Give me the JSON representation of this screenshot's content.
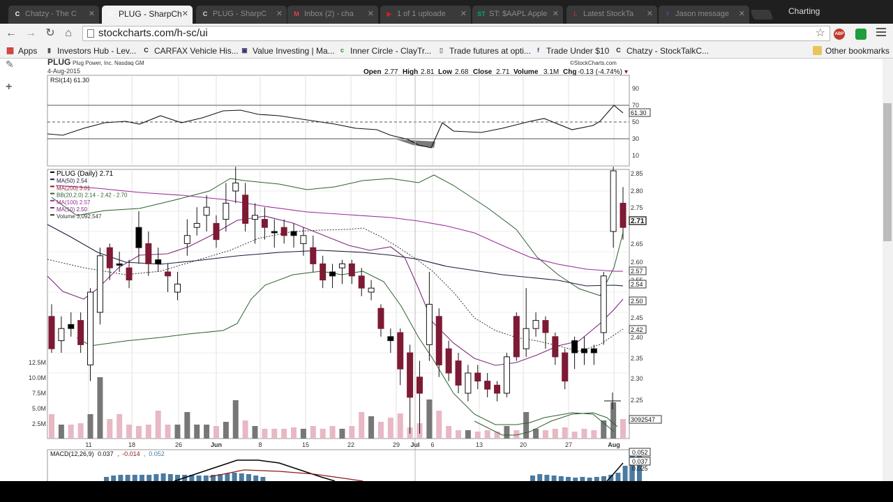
{
  "window": {
    "title": "Charting"
  },
  "tabs": [
    {
      "label": "Chatzy - The C",
      "favicon": "C",
      "active": false
    },
    {
      "label": "PLUG - SharpCh",
      "favicon": "C",
      "active": true
    },
    {
      "label": "PLUG - SharpC",
      "favicon": "C",
      "active": false
    },
    {
      "label": "Inbox (2) - cha",
      "favicon": "M",
      "active": false
    },
    {
      "label": "1 of 1 uploade",
      "favicon": "▶",
      "active": false
    },
    {
      "label": "ST: $AAPL Apple",
      "favicon": "ST",
      "active": false
    },
    {
      "label": "Latest StockTa",
      "favicon": "L",
      "active": false
    },
    {
      "label": "Jason message",
      "favicon": "f",
      "active": false
    }
  ],
  "address_bar": {
    "url": "stockcharts.com/h-sc/ui"
  },
  "extensions": {
    "abp": "ABP"
  },
  "bookmarks": {
    "apps_label": "Apps",
    "items": [
      {
        "label": "Investors Hub - Lev...",
        "icon": "bookmark-icon"
      },
      {
        "label": "CARFAX Vehicle His...",
        "icon": "carfax-icon"
      },
      {
        "label": "Value Investing | Ma...",
        "icon": "page-icon"
      },
      {
        "label": "Inner Circle - ClayTr...",
        "icon": "claytrader-icon"
      },
      {
        "label": "Trade futures at opti...",
        "icon": "doc-icon"
      },
      {
        "label": "Trade Under $10",
        "icon": "facebook-icon"
      },
      {
        "label": "Chatzy - StockTalkC...",
        "icon": "chatzy-icon"
      }
    ],
    "other_label": "Other bookmarks"
  },
  "chart_header": {
    "symbol": "PLUG",
    "company": "Plug Power, Inc. Nasdaq GM",
    "date": "4-Aug-2015",
    "source": "©StockCharts.com",
    "open_label": "Open",
    "open": "2.77",
    "high_label": "High",
    "high": "2.81",
    "low_label": "Low",
    "low": "2.68",
    "close_label": "Close",
    "close": "2.71",
    "volume_label": "Volume",
    "volume": "3.1M",
    "chg_label": "Chg",
    "chg": "-0.13 (-4.74%)"
  },
  "rsi_panel": {
    "label": "RSI(14) 61.30",
    "current_badge": "61.30",
    "ticks": [
      "90",
      "70",
      "50",
      "30",
      "10"
    ]
  },
  "price_panel": {
    "legend": [
      {
        "text": "PLUG (Daily) 2.71",
        "color": "#000000"
      },
      {
        "text": "MA(50) 2.54",
        "color": "#1a1a3a"
      },
      {
        "text": "MA(200) 3.01",
        "color": "#8b1a1a"
      },
      {
        "text": "BB(20,2.0) 2.14 - 2.42 - 2.70",
        "color": "#2e5e2e"
      },
      {
        "text": "MA(100) 2.57",
        "color": "#9a2a9a"
      },
      {
        "text": "MA(10) 2.50",
        "color": "#7a2a7a"
      },
      {
        "text": "Volume 3,092,547",
        "color": "#333333"
      }
    ],
    "price_ticks": [
      "2.85",
      "2.80",
      "2.75",
      "2.71",
      "2.65",
      "2.60",
      "2.55",
      "2.50",
      "2.45",
      "2.40",
      "2.35",
      "2.30",
      "2.25"
    ],
    "badges": [
      "2.71",
      "2.57",
      "2.54",
      "2.50",
      "2.42",
      "3092547"
    ],
    "volume_ticks": [
      "12.5M",
      "10.0M",
      "7.5M",
      "5.0M",
      "2.5M"
    ],
    "date_ticks": [
      "11",
      "18",
      "26",
      "Jun",
      "8",
      "15",
      "22",
      "29",
      "Jul",
      "6",
      "13",
      "20",
      "27",
      "Aug"
    ]
  },
  "macd_panel": {
    "label": "MACD(12,26,9)",
    "macd": "0.037",
    "signal": "-0.014",
    "histogram": "0.052",
    "badges": [
      "0.052",
      "0.037",
      "0.025"
    ]
  },
  "colors": {
    "up": "#ffffff",
    "down": "#7d1a34",
    "black_candle": "#000000",
    "vol_up": "#e8b8c4",
    "vol_down": "#777777"
  }
}
